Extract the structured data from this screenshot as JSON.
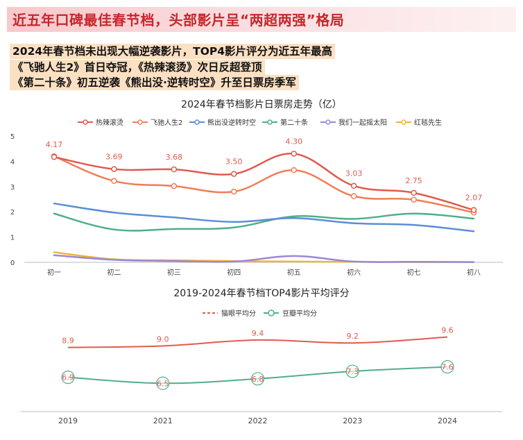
{
  "header": {
    "title": "近五年口碑最佳春节档，头部影片呈“两超两强”格局",
    "subtitle_lines": [
      "2024年春节档未出现大幅逆袭影片，TOP4影片评分为近五年最高",
      "《飞驰人生2》首日夺冠，《热辣滚烫》次日反超登顶",
      "《第二十条》初五逆袭《熊出没·逆转时空》升至日票房季军"
    ]
  },
  "chart_data": [
    {
      "type": "line",
      "title": "2024年春节档影片日票房走势（亿）",
      "categories": [
        "初一",
        "初二",
        "初三",
        "初四",
        "初五",
        "初六",
        "初七",
        "初八"
      ],
      "ylim": [
        0,
        5
      ],
      "yticks": [
        0,
        1,
        2,
        3,
        4,
        5
      ],
      "grid": false,
      "legend_position": "top",
      "series": [
        {
          "name": "热辣滚烫",
          "color": "#e05a4f",
          "values": [
            4.17,
            3.69,
            3.68,
            3.5,
            4.3,
            3.03,
            2.75,
            2.07
          ],
          "labeled": true
        },
        {
          "name": "飞驰人生2",
          "color": "#ef7d55",
          "values": [
            4.2,
            3.22,
            3.02,
            2.8,
            3.65,
            2.62,
            2.48,
            1.97
          ],
          "labeled": false
        },
        {
          "name": "熊出没逆转时空",
          "color": "#5a8ed8",
          "values": [
            2.33,
            1.97,
            1.78,
            1.6,
            1.75,
            1.55,
            1.48,
            1.23
          ],
          "labeled": false
        },
        {
          "name": "第二十条",
          "color": "#4fae8c",
          "values": [
            1.93,
            1.3,
            1.32,
            1.38,
            1.82,
            1.72,
            1.93,
            1.73
          ],
          "labeled": false
        },
        {
          "name": "我们一起摇太阳",
          "color": "#9a87d8",
          "values": [
            0.28,
            0.1,
            0.05,
            0.03,
            0.25,
            0.03,
            0.02,
            0.01
          ],
          "labeled": false
        },
        {
          "name": "红毯先生",
          "color": "#f0b43c",
          "values": [
            0.4,
            0.12,
            0.08,
            0.05,
            0.03,
            0.02,
            0.01,
            0.01
          ],
          "labeled": false
        }
      ],
      "data_labels": [
        "4.17",
        "3.69",
        "3.68",
        "3.50",
        "4.30",
        "3.03",
        "2.75",
        "2.07"
      ]
    },
    {
      "type": "line",
      "title": "2019-2024年春节档TOP4影片平均评分",
      "categories": [
        "2019",
        "2021",
        "2022",
        "2023",
        "2024"
      ],
      "ylim": [
        5,
        10.5
      ],
      "legend_position": "top",
      "series": [
        {
          "name": "猫眼平均分",
          "color": "#e05a4f",
          "values": [
            8.9,
            9.0,
            9.4,
            9.2,
            9.6
          ],
          "labels": [
            "8.9",
            "9.0",
            "9.4",
            "9.2",
            "9.6"
          ]
        },
        {
          "name": "豆瓣平均分",
          "color": "#4fae8c",
          "values": [
            6.9,
            6.5,
            6.8,
            7.3,
            7.6
          ],
          "labels": [
            "6.9",
            "6.5",
            "6.8",
            "7.3",
            "7.6"
          ]
        }
      ]
    }
  ]
}
